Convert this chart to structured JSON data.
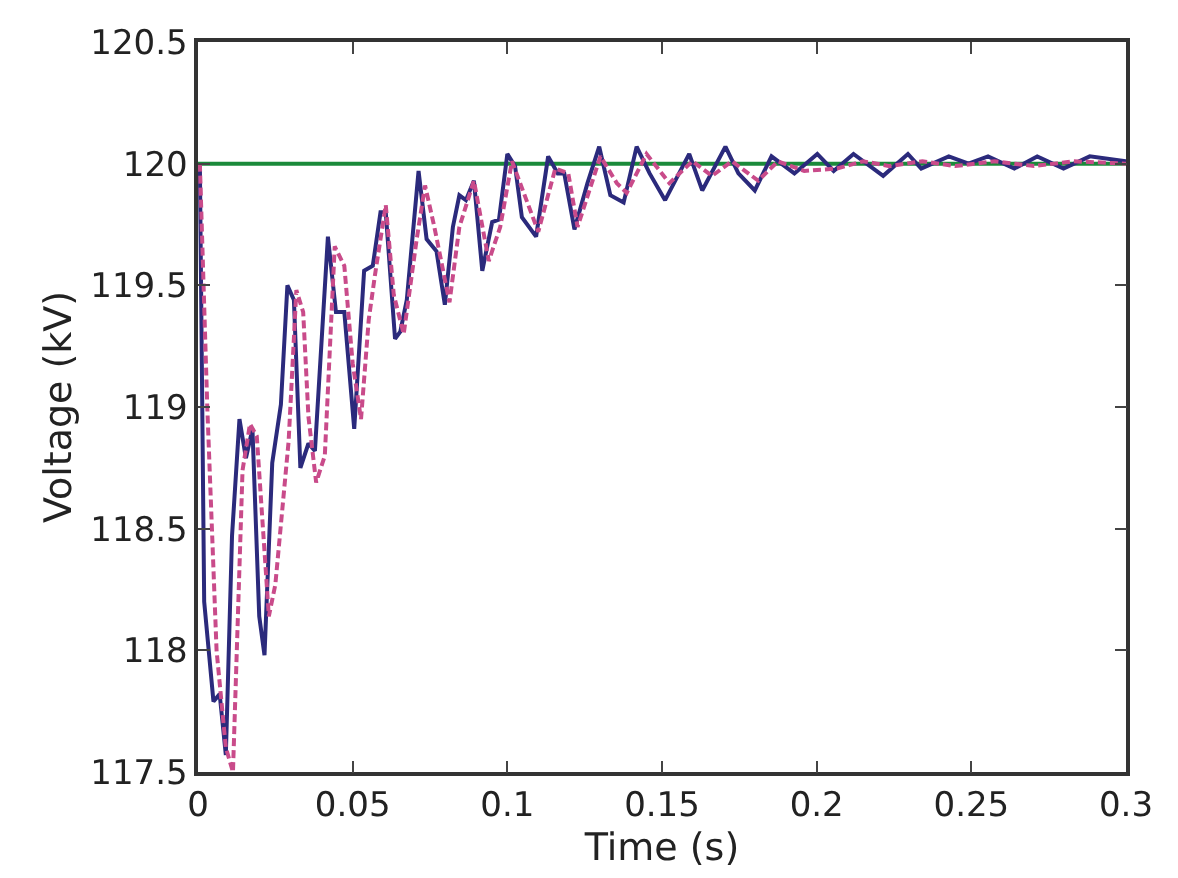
{
  "chart_data": {
    "type": "line",
    "xlabel": "Time (s)",
    "ylabel": "Voltage (kV)",
    "xlim": [
      0,
      0.3
    ],
    "xticks": [
      0,
      0.05,
      0.1,
      0.15,
      0.2,
      0.25,
      0.3
    ],
    "ylim": [
      117.5,
      120.5
    ],
    "yticks": [
      117.5,
      118,
      118.5,
      119,
      119.5,
      120,
      120.5
    ],
    "grid": false,
    "marker": "none",
    "ref_lines": [
      {
        "axis": "y",
        "value": 120,
        "color": "#1a8a3a",
        "line_style": "solid"
      }
    ],
    "series": [
      {
        "color": "#c94b8a",
        "line_style": "dashed",
        "x": [
          0.0006,
          0.003,
          0.006,
          0.009,
          0.0113,
          0.0144,
          0.0168,
          0.019,
          0.0229,
          0.025,
          0.0293,
          0.0318,
          0.034,
          0.0357,
          0.0382,
          0.041,
          0.0442,
          0.0473,
          0.05,
          0.0527,
          0.0552,
          0.0573,
          0.0607,
          0.0633,
          0.0665,
          0.0707,
          0.0734,
          0.0764,
          0.0813,
          0.0845,
          0.0892,
          0.094,
          0.0977,
          0.1015,
          0.11,
          0.1155,
          0.1197,
          0.1227,
          0.1301,
          0.1354,
          0.1386,
          0.145,
          0.1524,
          0.1598,
          0.1662,
          0.1726,
          0.1811,
          0.1875,
          0.196,
          0.2066,
          0.215,
          0.2236,
          0.2342,
          0.2448,
          0.2575,
          0.2703,
          0.283,
          0.3
        ],
        "values": [
          120.0,
          119.0,
          118.0,
          117.6,
          117.5,
          118.74,
          118.93,
          118.88,
          118.14,
          118.27,
          118.86,
          119.48,
          119.39,
          118.96,
          118.69,
          118.8,
          119.66,
          119.58,
          119.18,
          118.95,
          119.36,
          119.55,
          119.83,
          119.46,
          119.3,
          119.69,
          119.91,
          119.74,
          119.43,
          119.74,
          119.93,
          119.6,
          119.74,
          120.01,
          119.72,
          119.98,
          119.96,
          119.74,
          120.03,
          119.92,
          119.88,
          120.04,
          119.92,
          120.01,
          119.95,
          120.01,
          119.93,
          120.01,
          119.97,
          119.98,
          120.01,
          119.99,
          120.01,
          119.99,
          120.01,
          119.99,
          120.01,
          120.0
        ]
      },
      {
        "color": "#2b2a7c",
        "line_style": "solid",
        "x": [
          0.0006,
          0.002,
          0.005,
          0.007,
          0.009,
          0.011,
          0.0134,
          0.0155,
          0.0176,
          0.0198,
          0.0215,
          0.024,
          0.0268,
          0.0289,
          0.031,
          0.0331,
          0.0357,
          0.0378,
          0.042,
          0.0446,
          0.0473,
          0.0505,
          0.0537,
          0.0565,
          0.059,
          0.0607,
          0.0637,
          0.0654,
          0.0675,
          0.0713,
          0.0739,
          0.0771,
          0.0798,
          0.0824,
          0.0845,
          0.0866,
          0.0892,
          0.0919,
          0.0951,
          0.0973,
          0.1,
          0.1025,
          0.1047,
          0.1093,
          0.1132,
          0.1163,
          0.1184,
          0.1217,
          0.1259,
          0.1297,
          0.1333,
          0.1376,
          0.1418,
          0.146,
          0.151,
          0.1588,
          0.163,
          0.1705,
          0.1747,
          0.18,
          0.1854,
          0.1928,
          0.2002,
          0.2055,
          0.2119,
          0.2215,
          0.2295,
          0.2338,
          0.2427,
          0.2491,
          0.2554,
          0.2639,
          0.2713,
          0.2798,
          0.2883,
          0.3
        ],
        "values": [
          120.0,
          118.2,
          117.79,
          117.82,
          117.57,
          118.47,
          118.95,
          118.79,
          118.91,
          118.14,
          117.98,
          118.77,
          119.01,
          119.5,
          119.44,
          118.75,
          118.85,
          118.82,
          119.7,
          119.39,
          119.39,
          118.91,
          119.56,
          119.58,
          119.8,
          119.8,
          119.28,
          119.31,
          119.44,
          119.97,
          119.69,
          119.64,
          119.42,
          119.74,
          119.87,
          119.85,
          119.93,
          119.56,
          119.76,
          119.77,
          120.04,
          119.99,
          119.78,
          119.7,
          120.03,
          119.96,
          119.96,
          119.73,
          119.92,
          120.07,
          119.87,
          119.84,
          120.07,
          119.96,
          119.85,
          120.04,
          119.89,
          120.07,
          119.96,
          119.89,
          120.03,
          119.96,
          120.04,
          119.97,
          120.04,
          119.95,
          120.04,
          119.98,
          120.03,
          120.0,
          120.03,
          119.98,
          120.03,
          119.98,
          120.03,
          120.01
        ]
      }
    ]
  }
}
